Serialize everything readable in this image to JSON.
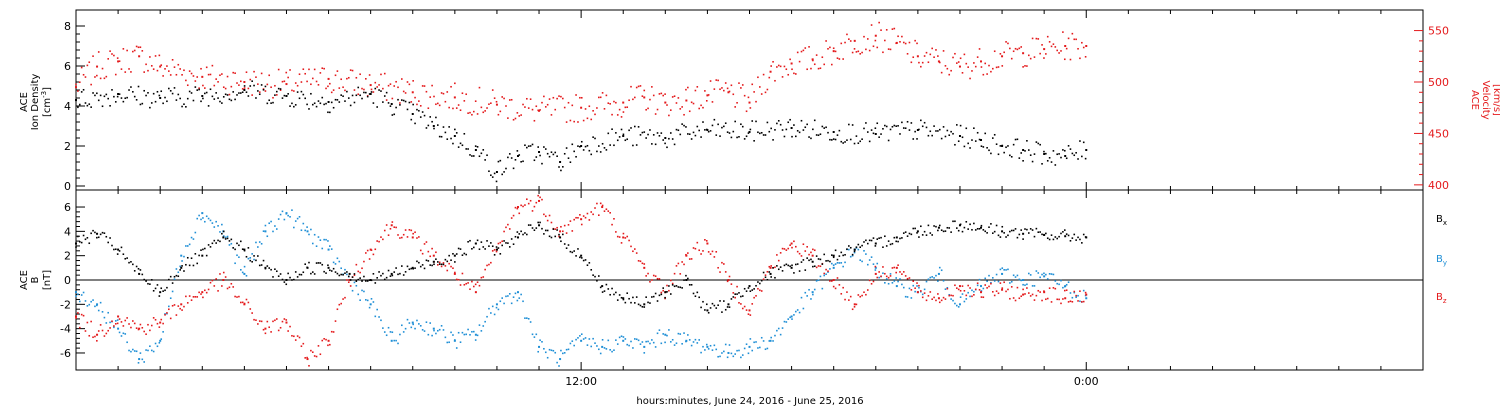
{
  "colors": {
    "black": "#000000",
    "red": "#e41a1c",
    "blue": "#1f8fd6"
  },
  "xaxis": {
    "label": "hours:minutes, June 24, 2016 - June 25, 2016",
    "range_hours": [
      0,
      32
    ],
    "ticks": [
      {
        "hour": 12,
        "label": "12:00"
      },
      {
        "hour": 24,
        "label": "0:00"
      }
    ],
    "minor_tick_hours": 1
  },
  "chart_data": [
    {
      "type": "scatter",
      "left_axis": {
        "label": "ACE\nIon Density\n[cm-3]",
        "label_lines": [
          "ACE",
          "Ion Density",
          "[cm",
          "-3",
          "]"
        ],
        "range": [
          -0.2,
          8.8
        ],
        "ticks": [
          {
            "value": 0,
            "label": "0"
          },
          {
            "value": 2,
            "label": "2"
          },
          {
            "value": 4,
            "label": "4"
          },
          {
            "value": 6,
            "label": "6"
          },
          {
            "value": 8,
            "label": "8"
          }
        ],
        "color": "#000000"
      },
      "right_axis": {
        "label": "ACE\nVelocity\n[km/s]",
        "label_lines": [
          "ACE",
          "Velocity",
          "[km/s]"
        ],
        "range": [
          395,
          570
        ],
        "ticks": [
          {
            "value": 400,
            "label": "400"
          },
          {
            "value": 450,
            "label": "450"
          },
          {
            "value": 500,
            "label": "500"
          },
          {
            "value": 550,
            "label": "550"
          }
        ],
        "color": "#e41a1c"
      },
      "series": [
        {
          "key": "density",
          "axis": "left",
          "color": "#000000",
          "points": [
            [
              0.0,
              4.3
            ],
            [
              1.0,
              4.6
            ],
            [
              2.0,
              4.4
            ],
            [
              3.0,
              4.5
            ],
            [
              4.0,
              4.8
            ],
            [
              5.0,
              4.5
            ],
            [
              6.0,
              4.2
            ],
            [
              7.0,
              4.6
            ],
            [
              7.5,
              4.1
            ],
            [
              8.0,
              3.6
            ],
            [
              8.5,
              3.0
            ],
            [
              9.0,
              2.5
            ],
            [
              9.5,
              1.8
            ],
            [
              10.0,
              0.7
            ],
            [
              10.5,
              1.5
            ],
            [
              11.0,
              1.7
            ],
            [
              11.5,
              1.2
            ],
            [
              12.0,
              2.0
            ],
            [
              13.0,
              2.5
            ],
            [
              14.0,
              2.4
            ],
            [
              15.0,
              2.8
            ],
            [
              16.0,
              2.7
            ],
            [
              17.0,
              2.9
            ],
            [
              18.0,
              2.7
            ],
            [
              19.0,
              2.6
            ],
            [
              20.0,
              2.8
            ],
            [
              21.0,
              2.5
            ],
            [
              21.5,
              2.3
            ],
            [
              22.0,
              2.0
            ],
            [
              22.5,
              1.8
            ],
            [
              23.0,
              1.6
            ],
            [
              23.5,
              1.5
            ],
            [
              24.0,
              1.8
            ]
          ]
        },
        {
          "key": "velocity",
          "axis": "right",
          "color": "#e41a1c",
          "points": [
            [
              0.0,
              495
            ],
            [
              0.5,
              515
            ],
            [
              1.0,
              520
            ],
            [
              1.5,
              525
            ],
            [
              2.0,
              515
            ],
            [
              3.0,
              505
            ],
            [
              4.0,
              500
            ],
            [
              5.0,
              498
            ],
            [
              6.0,
              503
            ],
            [
              7.0,
              497
            ],
            [
              8.0,
              490
            ],
            [
              9.0,
              485
            ],
            [
              10.0,
              478
            ],
            [
              11.0,
              472
            ],
            [
              12.0,
              475
            ],
            [
              13.0,
              480
            ],
            [
              13.5,
              485
            ],
            [
              14.0,
              480
            ],
            [
              14.5,
              482
            ],
            [
              15.0,
              487
            ],
            [
              15.5,
              490
            ],
            [
              16.0,
              480
            ],
            [
              16.5,
              510
            ],
            [
              17.0,
              518
            ],
            [
              17.5,
              522
            ],
            [
              18.0,
              530
            ],
            [
              18.5,
              540
            ],
            [
              19.0,
              545
            ],
            [
              19.5,
              538
            ],
            [
              20.0,
              525
            ],
            [
              20.5,
              520
            ],
            [
              21.0,
              515
            ],
            [
              21.5,
              520
            ],
            [
              22.0,
              525
            ],
            [
              22.5,
              528
            ],
            [
              23.0,
              532
            ],
            [
              23.5,
              535
            ],
            [
              24.0,
              535
            ]
          ]
        }
      ]
    },
    {
      "type": "scatter",
      "left_axis": {
        "label": "ACE\nB\n[nT]",
        "label_lines": [
          "ACE",
          "B",
          "[nT]"
        ],
        "range": [
          -7.4,
          7.4
        ],
        "ticks": [
          {
            "value": -6,
            "label": "-6"
          },
          {
            "value": -4,
            "label": "-4"
          },
          {
            "value": -2,
            "label": "-2"
          },
          {
            "value": 0,
            "label": "0"
          },
          {
            "value": 2,
            "label": "2"
          },
          {
            "value": 4,
            "label": "4"
          },
          {
            "value": 6,
            "label": "6"
          }
        ],
        "color": "#000000"
      },
      "zero_line": 0,
      "series": [
        {
          "key": "bx",
          "name_main": "B",
          "name_sub": "x",
          "color": "#000000",
          "points": [
            [
              0.0,
              3.0
            ],
            [
              0.5,
              3.8
            ],
            [
              1.0,
              2.5
            ],
            [
              1.5,
              0.5
            ],
            [
              2.0,
              -1.0
            ],
            [
              2.5,
              1.0
            ],
            [
              3.0,
              2.0
            ],
            [
              3.5,
              3.5
            ],
            [
              4.0,
              2.5
            ],
            [
              4.5,
              1.0
            ],
            [
              5.0,
              0.0
            ],
            [
              5.5,
              1.0
            ],
            [
              6.0,
              1.0
            ],
            [
              6.5,
              0.5
            ],
            [
              7.0,
              0.0
            ],
            [
              7.5,
              0.5
            ],
            [
              8.0,
              1.0
            ],
            [
              8.5,
              1.5
            ],
            [
              9.0,
              2.0
            ],
            [
              9.5,
              3.0
            ],
            [
              10.0,
              2.5
            ],
            [
              10.5,
              3.5
            ],
            [
              11.0,
              4.5
            ],
            [
              11.5,
              3.5
            ],
            [
              12.0,
              2.0
            ],
            [
              12.5,
              -0.5
            ],
            [
              13.0,
              -1.5
            ],
            [
              13.5,
              -2.0
            ],
            [
              14.0,
              -1.0
            ],
            [
              14.5,
              0.0
            ],
            [
              15.0,
              -2.5
            ],
            [
              15.5,
              -2.0
            ],
            [
              16.0,
              -0.5
            ],
            [
              16.5,
              0.5
            ],
            [
              17.0,
              1.0
            ],
            [
              17.5,
              1.5
            ],
            [
              18.0,
              2.0
            ],
            [
              18.5,
              2.5
            ],
            [
              19.0,
              3.0
            ],
            [
              19.5,
              3.5
            ],
            [
              20.0,
              4.0
            ],
            [
              20.5,
              4.3
            ],
            [
              21.0,
              4.5
            ],
            [
              21.5,
              4.3
            ],
            [
              22.0,
              4.0
            ],
            [
              22.5,
              3.8
            ],
            [
              23.0,
              3.7
            ],
            [
              23.5,
              3.6
            ],
            [
              24.0,
              3.5
            ]
          ]
        },
        {
          "key": "by",
          "name_main": "B",
          "name_sub": "y",
          "color": "#1f8fd6",
          "points": [
            [
              0.0,
              -1.0
            ],
            [
              0.5,
              -2.0
            ],
            [
              1.0,
              -4.0
            ],
            [
              1.5,
              -6.5
            ],
            [
              2.0,
              -5.0
            ],
            [
              2.5,
              2.0
            ],
            [
              3.0,
              5.5
            ],
            [
              3.5,
              4.0
            ],
            [
              4.0,
              0.5
            ],
            [
              4.5,
              4.0
            ],
            [
              5.0,
              5.5
            ],
            [
              5.5,
              4.0
            ],
            [
              6.0,
              2.5
            ],
            [
              6.5,
              0.0
            ],
            [
              7.0,
              -2.0
            ],
            [
              7.5,
              -5.0
            ],
            [
              8.0,
              -3.5
            ],
            [
              8.5,
              -4.0
            ],
            [
              9.0,
              -5.0
            ],
            [
              9.5,
              -4.5
            ],
            [
              10.0,
              -2.0
            ],
            [
              10.5,
              -1.0
            ],
            [
              11.0,
              -5.5
            ],
            [
              11.5,
              -6.5
            ],
            [
              12.0,
              -5.0
            ],
            [
              12.5,
              -5.5
            ],
            [
              13.0,
              -5.0
            ],
            [
              13.5,
              -5.5
            ],
            [
              14.0,
              -4.5
            ],
            [
              14.5,
              -5.0
            ],
            [
              15.0,
              -5.5
            ],
            [
              15.5,
              -6.0
            ],
            [
              16.0,
              -5.5
            ],
            [
              16.5,
              -5.0
            ],
            [
              17.0,
              -3.0
            ],
            [
              17.5,
              -1.0
            ],
            [
              18.0,
              1.0
            ],
            [
              18.5,
              2.5
            ],
            [
              19.0,
              1.0
            ],
            [
              19.5,
              -0.5
            ],
            [
              20.0,
              -1.0
            ],
            [
              20.5,
              0.5
            ],
            [
              21.0,
              -2.0
            ],
            [
              21.5,
              -0.5
            ],
            [
              22.0,
              0.5
            ],
            [
              22.5,
              0.0
            ],
            [
              23.0,
              0.3
            ],
            [
              23.5,
              -0.5
            ],
            [
              24.0,
              -1.5
            ]
          ]
        },
        {
          "key": "bz",
          "name_main": "B",
          "name_sub": "z",
          "color": "#e41a1c",
          "points": [
            [
              0.0,
              -3.0
            ],
            [
              0.5,
              -4.5
            ],
            [
              1.0,
              -3.0
            ],
            [
              1.5,
              -4.0
            ],
            [
              2.0,
              -3.5
            ],
            [
              2.5,
              -2.0
            ],
            [
              3.0,
              -1.0
            ],
            [
              3.5,
              0.0
            ],
            [
              4.0,
              -2.0
            ],
            [
              4.5,
              -4.0
            ],
            [
              5.0,
              -3.5
            ],
            [
              5.5,
              -6.5
            ],
            [
              6.0,
              -5.0
            ],
            [
              6.5,
              0.0
            ],
            [
              7.0,
              2.5
            ],
            [
              7.5,
              4.5
            ],
            [
              8.0,
              3.5
            ],
            [
              8.5,
              2.0
            ],
            [
              9.0,
              0.5
            ],
            [
              9.5,
              -1.0
            ],
            [
              10.0,
              2.5
            ],
            [
              10.5,
              6.0
            ],
            [
              11.0,
              6.5
            ],
            [
              11.5,
              4.0
            ],
            [
              12.0,
              5.0
            ],
            [
              12.5,
              6.0
            ],
            [
              13.0,
              3.5
            ],
            [
              13.5,
              1.0
            ],
            [
              14.0,
              -1.0
            ],
            [
              14.5,
              2.0
            ],
            [
              15.0,
              3.0
            ],
            [
              15.5,
              0.0
            ],
            [
              16.0,
              -2.5
            ],
            [
              16.5,
              1.0
            ],
            [
              17.0,
              3.0
            ],
            [
              17.5,
              2.0
            ],
            [
              18.0,
              0.0
            ],
            [
              18.5,
              -2.0
            ],
            [
              19.0,
              0.5
            ],
            [
              19.5,
              1.0
            ],
            [
              20.0,
              -1.0
            ],
            [
              20.5,
              -1.5
            ],
            [
              21.0,
              -0.5
            ],
            [
              21.5,
              -1.0
            ],
            [
              22.0,
              -0.8
            ],
            [
              22.5,
              -1.2
            ],
            [
              23.0,
              -1.0
            ],
            [
              23.5,
              -1.5
            ],
            [
              24.0,
              -1.2
            ]
          ]
        }
      ]
    }
  ]
}
